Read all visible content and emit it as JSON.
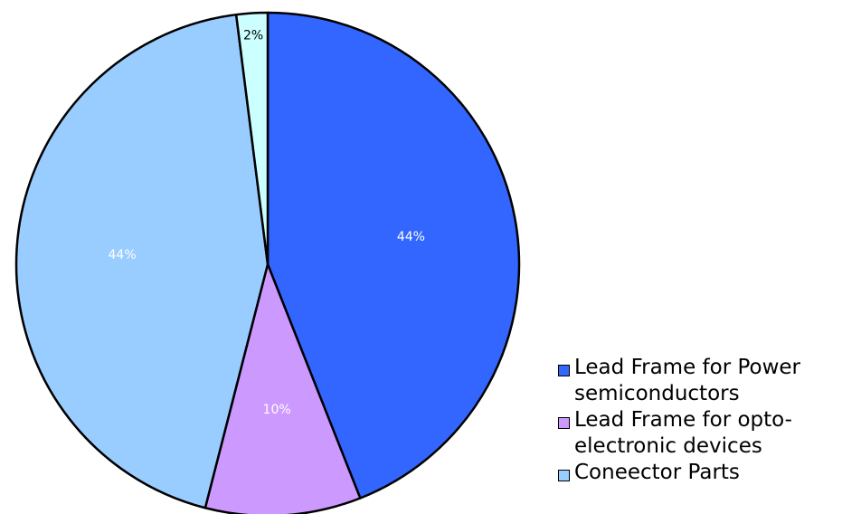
{
  "chart_data": {
    "type": "pie",
    "title": "",
    "legend_position": "bottom-right",
    "start_angle_deg": 0,
    "direction": "clockwise",
    "slices": [
      {
        "name": "Lead Frame for Power\nsemiconductors",
        "value": 44,
        "label": "44%",
        "color": "#3366FF",
        "label_color": "#FFFFFF"
      },
      {
        "name": "Lead Frame for opto-\nelectronic devices",
        "value": 10,
        "label": "10%",
        "color": "#CC99FF",
        "label_color": "#FFFFFF"
      },
      {
        "name": "Coneector Parts",
        "value": 44,
        "label": "44%",
        "color": "#99CCFF",
        "label_color": "#FFFFFF"
      },
      {
        "name": "",
        "value": 2,
        "label": "2%",
        "color": "#CCFFFF",
        "label_color": "#000000"
      }
    ],
    "legend_items": [
      0,
      1,
      2
    ]
  }
}
